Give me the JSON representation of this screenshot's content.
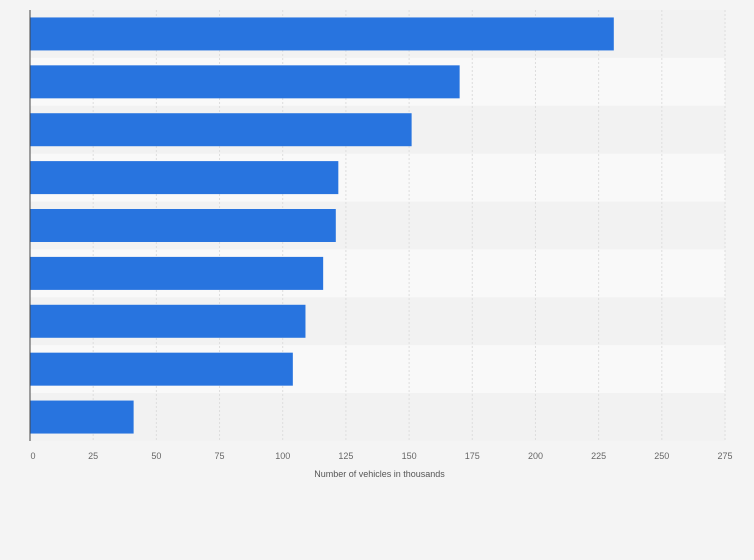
{
  "chart_data": {
    "type": "bar",
    "orientation": "horizontal",
    "categories": [
      "",
      "",
      "",
      "",
      "",
      "",
      "",
      "",
      ""
    ],
    "values": [
      231,
      170,
      151,
      122,
      121,
      116,
      109,
      104,
      41
    ],
    "title": "",
    "xlabel": "Number of vehicles in thousands",
    "ylabel": "",
    "xlim": [
      0,
      275
    ],
    "xticks": [
      0,
      25,
      50,
      75,
      100,
      125,
      150,
      175,
      200,
      225,
      250,
      275
    ],
    "xtick_labels": [
      "0",
      "25",
      "50",
      "75",
      "100",
      "125",
      "150",
      "175",
      "200",
      "225",
      "250",
      "275"
    ],
    "grid": true,
    "legend": "none",
    "colors": {
      "bar": "#2874df",
      "band_dark": "#f2f2f2",
      "band_light": "#f9f9f9",
      "grid": "#dddddd",
      "axis": "#444444"
    }
  }
}
